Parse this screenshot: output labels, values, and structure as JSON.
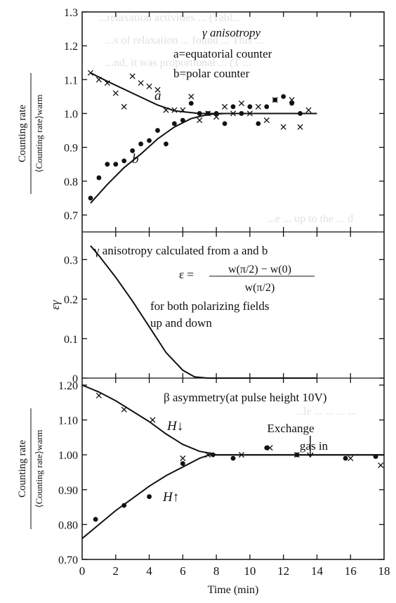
{
  "background_text_lines": [
    "...relaxation activities ... (Tabl...",
    "...s of relaxation ... found ... This ...",
    "...nd, it was proportional ... (T ...",
    "...e ... up to the ... d",
    "...le ... ... ... ..."
  ],
  "chart_data": [
    {
      "type": "scatter",
      "panel": "top",
      "title": "γ anisotropy",
      "annotations": [
        "a=equatorial counter",
        "b=polar counter"
      ],
      "curve_labels": [
        "a",
        "b"
      ],
      "ylabel_num": "Counting rate",
      "ylabel_den": "⟨Counting rate⟩warm",
      "xlim": [
        0,
        18
      ],
      "ylim": [
        0.65,
        1.3
      ],
      "yticks": [
        0.7,
        0.8,
        0.9,
        1.0,
        1.1,
        1.2,
        1.3
      ],
      "ytick_labels": [
        "0.7",
        "0.8",
        "0.9",
        "1.0",
        "1.1",
        "1.2",
        "1.3"
      ],
      "series": [
        {
          "name": "a",
          "marker": "x",
          "points": [
            [
              0.5,
              1.12
            ],
            [
              1.0,
              1.1
            ],
            [
              1.5,
              1.09
            ],
            [
              2.0,
              1.06
            ],
            [
              2.5,
              1.02
            ],
            [
              3.0,
              1.11
            ],
            [
              3.5,
              1.09
            ],
            [
              4.0,
              1.08
            ],
            [
              4.5,
              1.07
            ],
            [
              5.0,
              1.01
            ],
            [
              5.5,
              1.01
            ],
            [
              6.0,
              1.01
            ],
            [
              6.5,
              1.05
            ],
            [
              7.0,
              0.98
            ],
            [
              7.5,
              1.0
            ],
            [
              8.0,
              0.99
            ],
            [
              8.5,
              1.02
            ],
            [
              9.0,
              1.0
            ],
            [
              9.5,
              1.03
            ],
            [
              10.0,
              1.0
            ],
            [
              10.5,
              1.02
            ],
            [
              11.0,
              0.98
            ],
            [
              11.5,
              1.04
            ],
            [
              12.0,
              0.96
            ],
            [
              12.5,
              1.04
            ],
            [
              13.0,
              0.96
            ],
            [
              13.5,
              1.01
            ]
          ]
        },
        {
          "name": "b",
          "marker": "dot",
          "points": [
            [
              0.5,
              0.75
            ],
            [
              1.0,
              0.81
            ],
            [
              1.5,
              0.85
            ],
            [
              2.0,
              0.85
            ],
            [
              2.5,
              0.86
            ],
            [
              3.0,
              0.89
            ],
            [
              3.5,
              0.91
            ],
            [
              4.0,
              0.92
            ],
            [
              4.5,
              0.95
            ],
            [
              5.0,
              0.91
            ],
            [
              5.5,
              0.97
            ],
            [
              6.0,
              0.98
            ],
            [
              6.5,
              1.03
            ],
            [
              7.0,
              1.0
            ],
            [
              7.5,
              1.0
            ],
            [
              8.0,
              1.0
            ],
            [
              8.5,
              0.97
            ],
            [
              9.0,
              1.02
            ],
            [
              9.5,
              1.0
            ],
            [
              10.0,
              1.02
            ],
            [
              10.5,
              0.97
            ],
            [
              11.0,
              1.02
            ],
            [
              11.5,
              1.04
            ],
            [
              12.0,
              1.05
            ],
            [
              12.5,
              1.03
            ],
            [
              13.0,
              1.0
            ]
          ]
        }
      ],
      "fit_lines": [
        {
          "name": "a",
          "points": [
            [
              0.5,
              1.12
            ],
            [
              1.5,
              1.095
            ],
            [
              3,
              1.06
            ],
            [
              4.5,
              1.025
            ],
            [
              5.5,
              1.008
            ],
            [
              7,
              1.0
            ],
            [
              14,
              1.0
            ]
          ]
        },
        {
          "name": "b",
          "points": [
            [
              0.5,
              0.735
            ],
            [
              1.5,
              0.79
            ],
            [
              2.5,
              0.84
            ],
            [
              3.5,
              0.88
            ],
            [
              4.5,
              0.925
            ],
            [
              5.5,
              0.96
            ],
            [
              6.5,
              0.985
            ],
            [
              7.5,
              0.997
            ],
            [
              8.5,
              1.0
            ],
            [
              14,
              1.0
            ]
          ]
        }
      ]
    },
    {
      "type": "line",
      "panel": "middle",
      "title": "γ anisotropy calculated from a and b",
      "equation_lhs": "ε =",
      "equation_numerator": "w(π/2) − w(0)",
      "equation_denominator": "w(π/2)",
      "note_lines": [
        "for both polarizing fields",
        "up and down"
      ],
      "ylabel": "εγ",
      "xlim": [
        0,
        18
      ],
      "ylim": [
        0,
        0.37
      ],
      "yticks": [
        0,
        0.1,
        0.2,
        0.3
      ],
      "ytick_labels": [
        "0",
        "0.1",
        "0.2",
        "0.3"
      ],
      "series": [
        {
          "name": "εγ",
          "points": [
            [
              0.5,
              0.335
            ],
            [
              1.0,
              0.31
            ],
            [
              2.0,
              0.255
            ],
            [
              3.0,
              0.195
            ],
            [
              4.0,
              0.13
            ],
            [
              5.0,
              0.065
            ],
            [
              6.0,
              0.02
            ],
            [
              6.7,
              0.003
            ],
            [
              7.5,
              0.0
            ],
            [
              14,
              0.0
            ]
          ]
        }
      ]
    },
    {
      "type": "scatter",
      "panel": "bottom",
      "title": "β asymmetry(at pulse height 10V)",
      "ylabel_num": "Counting rate",
      "ylabel_den": "⟨Counting rate⟩warm",
      "xlabel": "Time (min)",
      "xlim": [
        0,
        18
      ],
      "xticks": [
        0,
        2,
        4,
        6,
        8,
        10,
        12,
        14,
        16,
        18
      ],
      "xtick_labels": [
        "0",
        "2",
        "4",
        "6",
        "8",
        "10",
        "12",
        "14",
        "16",
        "18"
      ],
      "ylim": [
        0.7,
        1.22
      ],
      "yticks": [
        0.7,
        0.8,
        0.9,
        1.0,
        1.1,
        1.2
      ],
      "ytick_labels": [
        "0.70",
        "0.80",
        "0.90",
        "1.00",
        "1.10",
        "1.20"
      ],
      "annotations": [
        "H↓",
        "H↑",
        "Exchange",
        "gas in"
      ],
      "series": [
        {
          "name": "H↓",
          "marker": "x",
          "points": [
            [
              1.0,
              1.17
            ],
            [
              2.5,
              1.13
            ],
            [
              4.2,
              1.1
            ],
            [
              6.0,
              0.99
            ],
            [
              7.5,
              1.0
            ],
            [
              9.5,
              1.0
            ],
            [
              11.2,
              1.02
            ],
            [
              12.8,
              1.0
            ],
            [
              16.0,
              0.99
            ],
            [
              17.8,
              0.97
            ]
          ]
        },
        {
          "name": "H↑",
          "marker": "dot",
          "points": [
            [
              0.8,
              0.815
            ],
            [
              2.5,
              0.855
            ],
            [
              4.0,
              0.88
            ],
            [
              6.0,
              0.975
            ],
            [
              7.8,
              1.0
            ],
            [
              9.0,
              0.99
            ],
            [
              11.0,
              1.02
            ],
            [
              12.8,
              1.0
            ],
            [
              15.7,
              0.99
            ],
            [
              17.5,
              0.995
            ]
          ]
        }
      ],
      "fit_lines": [
        {
          "name": "H↓",
          "points": [
            [
              0,
              1.2
            ],
            [
              1,
              1.18
            ],
            [
              2,
              1.155
            ],
            [
              3,
              1.125
            ],
            [
              4,
              1.095
            ],
            [
              5,
              1.06
            ],
            [
              6,
              1.03
            ],
            [
              7,
              1.01
            ],
            [
              7.6,
              1.005
            ],
            [
              8,
              1.0
            ],
            [
              18,
              1.0
            ]
          ]
        },
        {
          "name": "H↑",
          "points": [
            [
              0,
              0.76
            ],
            [
              1,
              0.8
            ],
            [
              2,
              0.84
            ],
            [
              3,
              0.875
            ],
            [
              4,
              0.91
            ],
            [
              5,
              0.94
            ],
            [
              6,
              0.965
            ],
            [
              7,
              0.99
            ],
            [
              7.6,
              1.0
            ],
            [
              18,
              1.0
            ]
          ]
        }
      ],
      "exchange_gas_arrow_x": 13.6
    }
  ]
}
